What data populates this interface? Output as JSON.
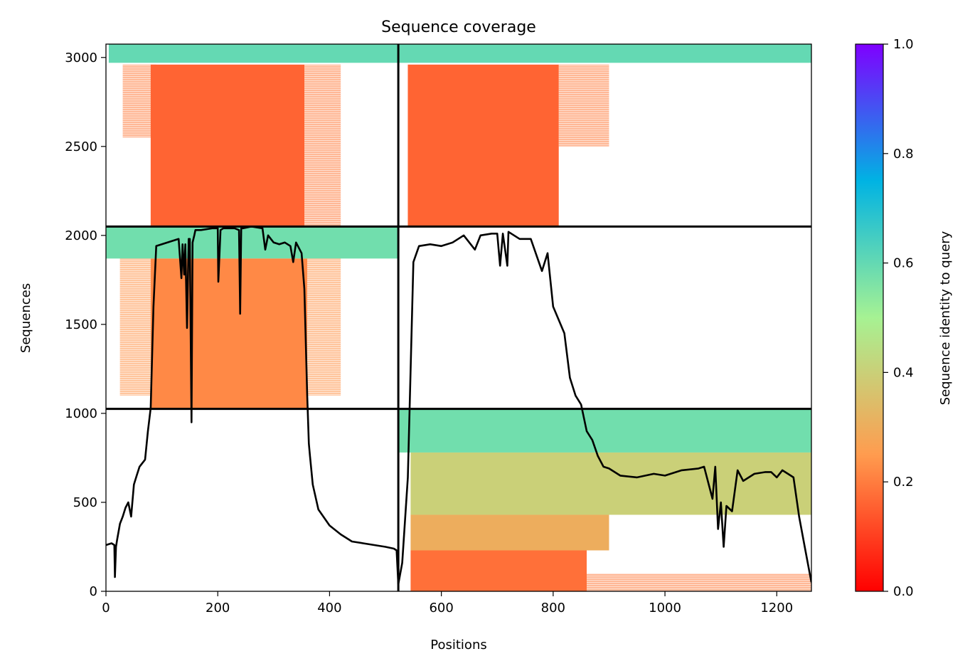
{
  "chart_data": {
    "type": "heatmap",
    "title": "Sequence coverage",
    "xlabel": "Positions",
    "ylabel": "Sequences",
    "xlim": [
      0,
      1262
    ],
    "ylim": [
      0,
      3075
    ],
    "xticks": [
      0,
      200,
      400,
      600,
      800,
      1000,
      1200
    ],
    "yticks": [
      0,
      500,
      1000,
      1500,
      2000,
      2500,
      3000
    ],
    "colorbar": {
      "label": "Sequence identity to query",
      "range": [
        0.0,
        1.0
      ],
      "ticks": [
        "0.0",
        "0.2",
        "0.4",
        "0.6",
        "0.8",
        "1.0"
      ],
      "colormap": "rainbow_r",
      "stops": [
        "#ff0000",
        "#ff9c4f",
        "#a6f293",
        "#00b3e3",
        "#7f00ff"
      ]
    },
    "dividers": {
      "x": 523,
      "y": [
        1025,
        2050
      ]
    },
    "coverage_blocks": [
      {
        "x": [
          5,
          523
        ],
        "y": [
          2970,
          3075
        ],
        "identity": 0.6
      },
      {
        "x": [
          30,
          90
        ],
        "y": [
          2550,
          2960
        ],
        "identity": 0.2,
        "sparse": true
      },
      {
        "x": [
          80,
          355
        ],
        "y": [
          2050,
          2960
        ],
        "identity": 0.16
      },
      {
        "x": [
          355,
          420
        ],
        "y": [
          2050,
          2960
        ],
        "identity": 0.2,
        "sparse": true
      },
      {
        "x": [
          523,
          1262
        ],
        "y": [
          2970,
          3075
        ],
        "identity": 0.6
      },
      {
        "x": [
          540,
          810
        ],
        "y": [
          2050,
          2960
        ],
        "identity": 0.16
      },
      {
        "x": [
          810,
          900
        ],
        "y": [
          2500,
          2960
        ],
        "identity": 0.2,
        "sparse": true
      },
      {
        "x": [
          0,
          523
        ],
        "y": [
          1870,
          2050
        ],
        "identity": 0.58
      },
      {
        "x": [
          25,
          80
        ],
        "y": [
          1100,
          1870
        ],
        "identity": 0.24,
        "sparse": true
      },
      {
        "x": [
          80,
          360
        ],
        "y": [
          1025,
          1870
        ],
        "identity": 0.22
      },
      {
        "x": [
          360,
          420
        ],
        "y": [
          1100,
          1870
        ],
        "identity": 0.24,
        "sparse": true
      },
      {
        "x": [
          523,
          1262
        ],
        "y": [
          780,
          1025
        ],
        "identity": 0.58
      },
      {
        "x": [
          545,
          1262
        ],
        "y": [
          430,
          780
        ],
        "identity": 0.4
      },
      {
        "x": [
          545,
          900
        ],
        "y": [
          230,
          430
        ],
        "identity": 0.3
      },
      {
        "x": [
          545,
          860
        ],
        "y": [
          0,
          230
        ],
        "identity": 0.18
      },
      {
        "x": [
          860,
          1262
        ],
        "y": [
          0,
          100
        ],
        "identity": 0.2,
        "sparse": true
      }
    ],
    "coverage_line": {
      "x": [
        0,
        10,
        15,
        16,
        18,
        20,
        25,
        30,
        35,
        40,
        45,
        50,
        55,
        60,
        70,
        75,
        80,
        85,
        90,
        100,
        120,
        130,
        135,
        137,
        140,
        142,
        145,
        148,
        150,
        153,
        155,
        158,
        160,
        170,
        190,
        200,
        201,
        205,
        210,
        230,
        238,
        240,
        242,
        245,
        260,
        280,
        285,
        290,
        300,
        310,
        320,
        330,
        335,
        340,
        350,
        355,
        360,
        363,
        365,
        370,
        380,
        400,
        420,
        440,
        460,
        480,
        500,
        515,
        520,
        523,
        530,
        540,
        550,
        560,
        580,
        600,
        620,
        640,
        660,
        670,
        690,
        700,
        705,
        710,
        718,
        720,
        725,
        740,
        760,
        780,
        790,
        800,
        820,
        830,
        840,
        850,
        860,
        870,
        880,
        890,
        900,
        920,
        950,
        980,
        1000,
        1030,
        1060,
        1070,
        1085,
        1090,
        1095,
        1100,
        1105,
        1110,
        1120,
        1130,
        1140,
        1160,
        1180,
        1190,
        1200,
        1210,
        1220,
        1230,
        1240,
        1250,
        1262
      ],
      "y": [
        260,
        270,
        260,
        80,
        250,
        290,
        380,
        420,
        470,
        500,
        420,
        600,
        650,
        700,
        740,
        900,
        1030,
        1600,
        1940,
        1950,
        1970,
        1980,
        1760,
        1950,
        1780,
        1950,
        1480,
        1980,
        1980,
        950,
        1960,
        2000,
        2030,
        2030,
        2040,
        2040,
        1740,
        2030,
        2040,
        2040,
        2030,
        1560,
        2040,
        2040,
        2050,
        2040,
        1920,
        2000,
        1960,
        1950,
        1960,
        1940,
        1850,
        1960,
        1900,
        1700,
        1100,
        830,
        760,
        600,
        460,
        370,
        320,
        280,
        270,
        260,
        250,
        240,
        230,
        40,
        160,
        640,
        1850,
        1940,
        1950,
        1940,
        1960,
        2000,
        1920,
        2000,
        2010,
        2010,
        1830,
        2010,
        1830,
        2020,
        2010,
        1980,
        1980,
        1800,
        1900,
        1600,
        1450,
        1200,
        1100,
        1050,
        900,
        850,
        760,
        700,
        690,
        650,
        640,
        660,
        650,
        680,
        690,
        700,
        520,
        700,
        350,
        500,
        250,
        480,
        450,
        680,
        620,
        660,
        670,
        670,
        640,
        680,
        660,
        640,
        420,
        250,
        50
      ]
    }
  }
}
